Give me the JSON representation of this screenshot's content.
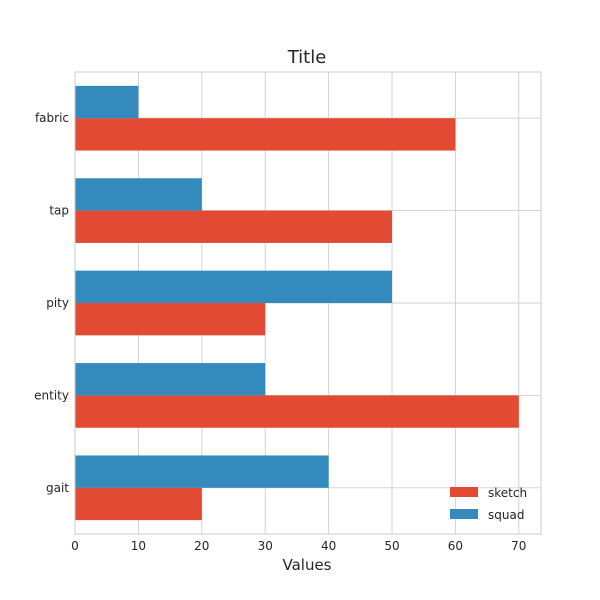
{
  "chart_data": {
    "type": "bar",
    "orientation": "horizontal",
    "title": "Title",
    "xlabel": "Values",
    "ylabel": "",
    "categories": [
      "fabric",
      "tap",
      "pity",
      "entity",
      "gait"
    ],
    "series": [
      {
        "name": "sketch",
        "color": "#e24a33",
        "values": [
          60,
          50,
          30,
          70,
          20
        ]
      },
      {
        "name": "squad",
        "color": "#348abd",
        "values": [
          10,
          20,
          50,
          30,
          40
        ]
      }
    ],
    "xlim": [
      0,
      73.5
    ],
    "xticks": [
      0,
      10,
      20,
      30,
      40,
      50,
      60,
      70
    ],
    "grid": true,
    "legend_position": "bottom-right"
  }
}
